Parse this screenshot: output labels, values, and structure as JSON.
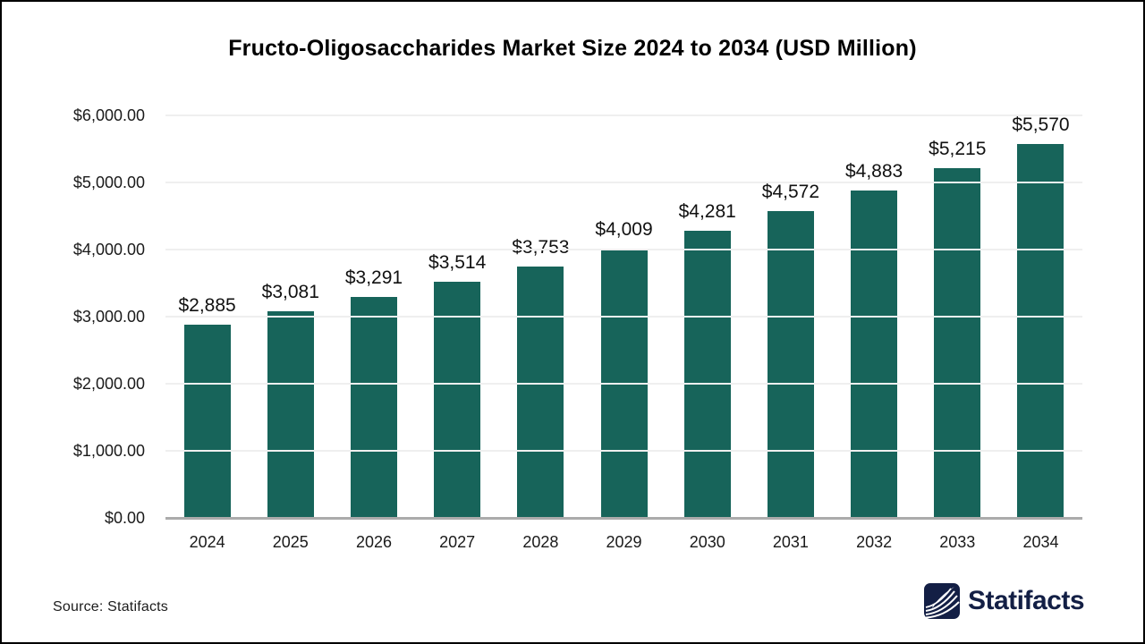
{
  "chart_data": {
    "type": "bar",
    "title": "Fructo-Oligosaccharides Market Size 2024 to 2034 (USD Million)",
    "categories": [
      "2024",
      "2025",
      "2026",
      "2027",
      "2028",
      "2029",
      "2030",
      "2031",
      "2032",
      "2033",
      "2034"
    ],
    "values": [
      2885,
      3081,
      3291,
      3514,
      3753,
      4009,
      4281,
      4572,
      4883,
      5215,
      5570
    ],
    "bar_labels": [
      "$2,885",
      "$3,081",
      "$3,291",
      "$3,514",
      "$3,753",
      "$4,009",
      "$4,281",
      "$4,572",
      "$4,883",
      "$5,215",
      "$5,570"
    ],
    "xlabel": "",
    "ylabel": "",
    "ylim": [
      0,
      6000
    ],
    "ytick_interval": 1000,
    "ytick_labels": [
      "$0.00",
      "$1,000.00",
      "$2,000.00",
      "$3,000.00",
      "$4,000.00",
      "$5,000.00",
      "$6,000.00"
    ],
    "grid": true,
    "legend": false,
    "bar_color": "#17645a",
    "gridline_color": "#efefef",
    "axis_line_color": "#ababab"
  },
  "footer": {
    "source_label": "Source: Statifacts",
    "brand_name": "Statifacts"
  },
  "colors": {
    "background": "#ffffff",
    "border": "#000000",
    "title_text": "#000000",
    "label_text": "#1a1a1a",
    "brand_navy": "#131f45"
  }
}
